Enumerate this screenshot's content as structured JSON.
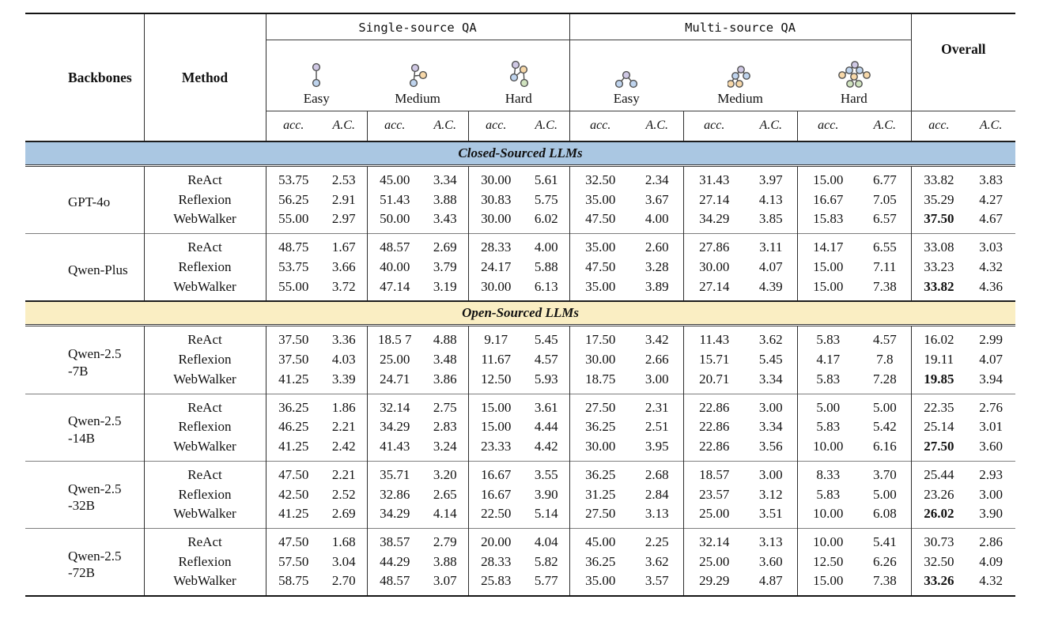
{
  "table": {
    "headers": {
      "backbones": "Backbones",
      "method": "Method",
      "single_source": "Single-source QA",
      "multi_source": "Multi-source QA",
      "overall": "Overall"
    },
    "metrics": [
      "acc.",
      "A.C."
    ],
    "difficulties": [
      {
        "label": "Easy",
        "icon": "single-source-easy-tree-icon"
      },
      {
        "label": "Medium",
        "icon": "single-source-medium-tree-icon"
      },
      {
        "label": "Hard",
        "icon": "single-source-hard-tree-icon"
      },
      {
        "label": "Easy",
        "icon": "multi-source-easy-tree-icon"
      },
      {
        "label": "Medium",
        "icon": "multi-source-medium-tree-icon"
      },
      {
        "label": "Hard",
        "icon": "multi-source-hard-tree-icon"
      }
    ],
    "icon_colors": {
      "root": "#cfc8e4",
      "blue": "#bfd4ee",
      "orange": "#f7d8a9",
      "green": "#d0e3bf",
      "stroke": "#4f4f4f"
    },
    "sections": [
      {
        "label": "Closed-Sourced LLMs",
        "band_color": "#aac7e2",
        "groups": [
          {
            "backbone": [
              "GPT-4o"
            ],
            "rows": [
              {
                "method": "ReAct",
                "values": [
                  "53.75",
                  "2.53",
                  "45.00",
                  "3.34",
                  "30.00",
                  "5.61",
                  "32.50",
                  "2.34",
                  "31.43",
                  "3.97",
                  "15.00",
                  "6.77",
                  "33.82",
                  "3.83"
                ],
                "bold": []
              },
              {
                "method": "Reflexion",
                "values": [
                  "56.25",
                  "2.91",
                  "51.43",
                  "3.88",
                  "30.83",
                  "5.75",
                  "35.00",
                  "3.67",
                  "27.14",
                  "4.13",
                  "16.67",
                  "7.05",
                  "35.29",
                  "4.27"
                ],
                "bold": []
              },
              {
                "method": "WebWalker",
                "values": [
                  "55.00",
                  "2.97",
                  "50.00",
                  "3.43",
                  "30.00",
                  "6.02",
                  "47.50",
                  "4.00",
                  "34.29",
                  "3.85",
                  "15.83",
                  "6.57",
                  "37.50",
                  "4.67"
                ],
                "bold": [
                  12
                ]
              }
            ]
          },
          {
            "backbone": [
              "Qwen-Plus"
            ],
            "rows": [
              {
                "method": "ReAct",
                "values": [
                  "48.75",
                  "1.67",
                  "48.57",
                  "2.69",
                  "28.33",
                  "4.00",
                  "35.00",
                  "2.60",
                  "27.86",
                  "3.11",
                  "14.17",
                  "6.55",
                  "33.08",
                  "3.03"
                ],
                "bold": []
              },
              {
                "method": "Reflexion",
                "values": [
                  "53.75",
                  "3.66",
                  "40.00",
                  "3.79",
                  "24.17",
                  "5.88",
                  "47.50",
                  "3.28",
                  "30.00",
                  "4.07",
                  "15.00",
                  "7.11",
                  "33.23",
                  "4.32"
                ],
                "bold": []
              },
              {
                "method": "WebWalker",
                "values": [
                  "55.00",
                  "3.72",
                  "47.14",
                  "3.19",
                  "30.00",
                  "6.13",
                  "35.00",
                  "3.89",
                  "27.14",
                  "4.39",
                  "15.00",
                  "7.38",
                  "33.82",
                  "4.36"
                ],
                "bold": [
                  12
                ]
              }
            ]
          }
        ]
      },
      {
        "label": "Open-Sourced LLMs",
        "band_color": "#faeec3",
        "groups": [
          {
            "backbone": [
              "Qwen-2.5",
              "-7B"
            ],
            "rows": [
              {
                "method": "ReAct",
                "values": [
                  "37.50",
                  "3.36",
                  "18.5 7",
                  "4.88",
                  "9.17",
                  "5.45",
                  "17.50",
                  "3.42",
                  "11.43",
                  "3.62",
                  "5.83",
                  "4.57",
                  "16.02",
                  "2.99"
                ],
                "bold": []
              },
              {
                "method": "Reflexion",
                "values": [
                  "37.50",
                  "4.03",
                  "25.00",
                  "3.48",
                  "11.67",
                  "4.57",
                  "30.00",
                  "2.66",
                  "15.71",
                  "5.45",
                  "4.17",
                  "7.8",
                  "19.11",
                  "4.07"
                ],
                "bold": []
              },
              {
                "method": "WebWalker",
                "values": [
                  "41.25",
                  "3.39",
                  "24.71",
                  "3.86",
                  "12.50",
                  "5.93",
                  "18.75",
                  "3.00",
                  "20.71",
                  "3.34",
                  "5.83",
                  "7.28",
                  "19.85",
                  "3.94"
                ],
                "bold": [
                  12
                ]
              }
            ]
          },
          {
            "backbone": [
              "Qwen-2.5",
              "-14B"
            ],
            "rows": [
              {
                "method": "ReAct",
                "values": [
                  "36.25",
                  "1.86",
                  "32.14",
                  "2.75",
                  "15.00",
                  "3.61",
                  "27.50",
                  "2.31",
                  "22.86",
                  "3.00",
                  "5.00",
                  "5.00",
                  "22.35",
                  "2.76"
                ],
                "bold": []
              },
              {
                "method": "Reflexion",
                "values": [
                  "46.25",
                  "2.21",
                  "34.29",
                  "2.83",
                  "15.00",
                  "4.44",
                  "36.25",
                  "2.51",
                  "22.86",
                  "3.34",
                  "5.83",
                  "5.42",
                  "25.14",
                  "3.01"
                ],
                "bold": []
              },
              {
                "method": "WebWalker",
                "values": [
                  "41.25",
                  "2.42",
                  "41.43",
                  "3.24",
                  "23.33",
                  "4.42",
                  "30.00",
                  "3.95",
                  "22.86",
                  "3.56",
                  "10.00",
                  "6.16",
                  "27.50",
                  "3.60"
                ],
                "bold": [
                  12
                ]
              }
            ]
          },
          {
            "backbone": [
              "Qwen-2.5",
              "-32B"
            ],
            "rows": [
              {
                "method": "ReAct",
                "values": [
                  "47.50",
                  "2.21",
                  "35.71",
                  "3.20",
                  "16.67",
                  "3.55",
                  "36.25",
                  "2.68",
                  "18.57",
                  "3.00",
                  "8.33",
                  "3.70",
                  "25.44",
                  "2.93"
                ],
                "bold": []
              },
              {
                "method": "Reflexion",
                "values": [
                  "42.50",
                  "2.52",
                  "32.86",
                  "2.65",
                  "16.67",
                  "3.90",
                  "31.25",
                  "2.84",
                  "23.57",
                  "3.12",
                  "5.83",
                  "5.00",
                  "23.26",
                  "3.00"
                ],
                "bold": []
              },
              {
                "method": "WebWalker",
                "values": [
                  "41.25",
                  "2.69",
                  "34.29",
                  "4.14",
                  "22.50",
                  "5.14",
                  "27.50",
                  "3.13",
                  "25.00",
                  "3.51",
                  "10.00",
                  "6.08",
                  "26.02",
                  "3.90"
                ],
                "bold": [
                  12
                ]
              }
            ]
          },
          {
            "backbone": [
              "Qwen-2.5",
              "-72B"
            ],
            "rows": [
              {
                "method": "ReAct",
                "values": [
                  "47.50",
                  "1.68",
                  "38.57",
                  "2.79",
                  "20.00",
                  "4.04",
                  "45.00",
                  "2.25",
                  "32.14",
                  "3.13",
                  "10.00",
                  "5.41",
                  "30.73",
                  "2.86"
                ],
                "bold": []
              },
              {
                "method": "Reflexion",
                "values": [
                  "57.50",
                  "3.04",
                  "44.29",
                  "3.88",
                  "28.33",
                  "5.82",
                  "36.25",
                  "3.62",
                  "25.00",
                  "3.60",
                  "12.50",
                  "6.26",
                  "32.50",
                  "4.09"
                ],
                "bold": []
              },
              {
                "method": "WebWalker",
                "values": [
                  "58.75",
                  "2.70",
                  "48.57",
                  "3.07",
                  "25.83",
                  "5.77",
                  "35.00",
                  "3.57",
                  "29.29",
                  "4.87",
                  "15.00",
                  "7.38",
                  "33.26",
                  "4.32"
                ],
                "bold": [
                  12
                ]
              }
            ]
          }
        ]
      }
    ]
  }
}
